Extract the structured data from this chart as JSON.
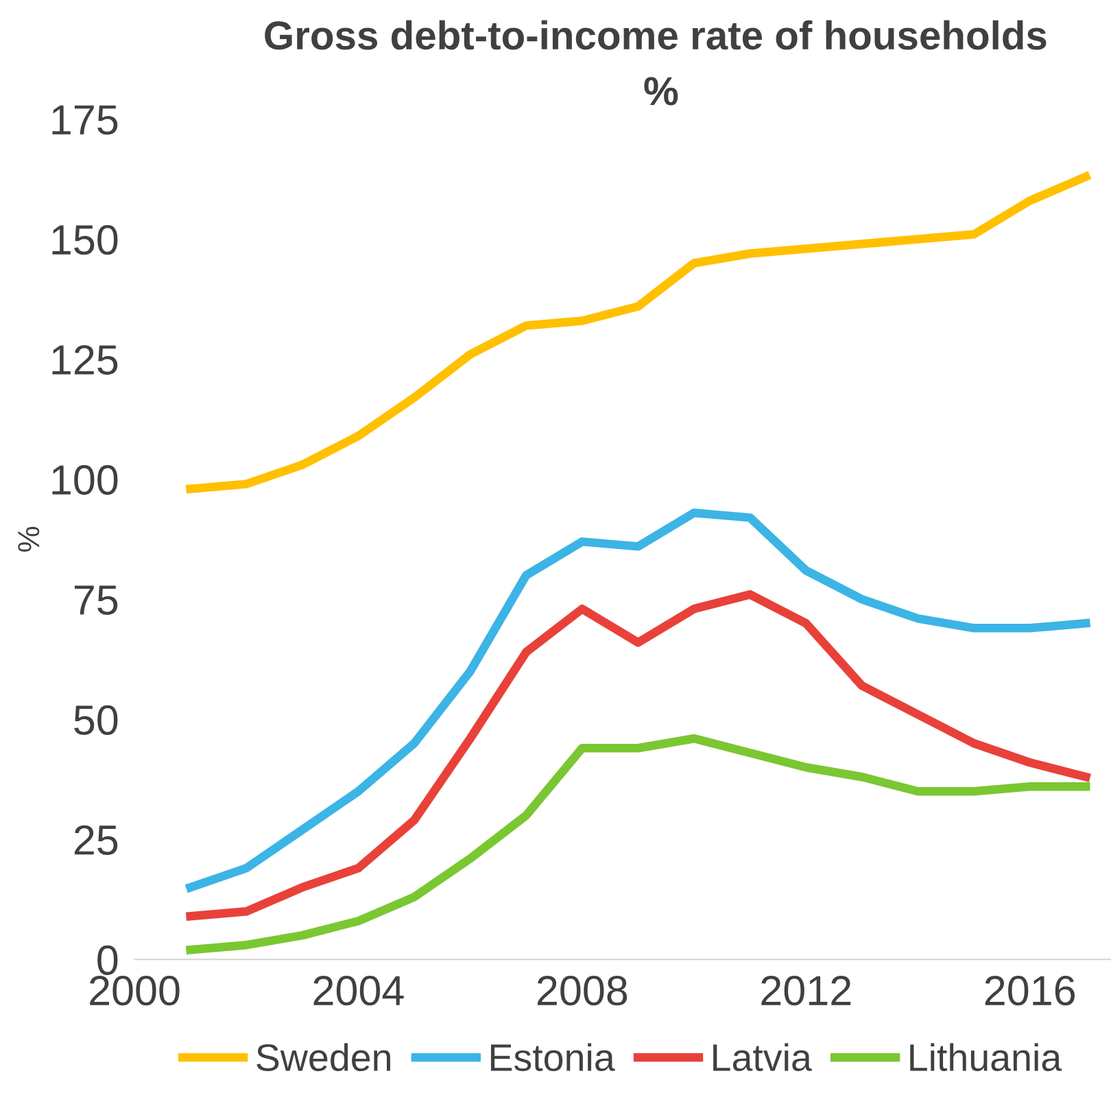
{
  "chart_data": {
    "type": "line",
    "title": "Gross debt-to-income rate of households",
    "subtitle": "%",
    "ylabel": "%",
    "x": [
      2001,
      2002,
      2003,
      2004,
      2005,
      2006,
      2007,
      2008,
      2009,
      2010,
      2011,
      2012,
      2013,
      2014,
      2015,
      2016,
      2017
    ],
    "series": [
      {
        "name": "Sweden",
        "color": "#ffc000",
        "values": [
          98,
          99,
          103,
          109,
          117,
          126,
          132,
          133,
          136,
          145,
          147,
          148,
          149,
          150,
          151,
          158,
          163
        ]
      },
      {
        "name": "Estonia",
        "color": "#3cb4e5",
        "values": [
          15,
          19,
          27,
          35,
          45,
          60,
          80,
          87,
          86,
          93,
          92,
          81,
          75,
          71,
          69,
          69,
          70
        ]
      },
      {
        "name": "Latvia",
        "color": "#e8413a",
        "values": [
          9,
          10,
          15,
          19,
          29,
          46,
          64,
          73,
          66,
          73,
          76,
          70,
          57,
          51,
          45,
          41,
          38
        ]
      },
      {
        "name": "Lithuania",
        "color": "#7ac732",
        "values": [
          2,
          3,
          5,
          8,
          13,
          21,
          30,
          44,
          44,
          46,
          43,
          40,
          38,
          35,
          35,
          36,
          36
        ]
      }
    ],
    "xlim": [
      2000,
      2017.45
    ],
    "xticks": [
      2000,
      2004,
      2008,
      2012,
      2016
    ],
    "ylim": [
      0,
      175
    ],
    "yticks": [
      0,
      25,
      50,
      75,
      100,
      125,
      150,
      175
    ],
    "grid": false,
    "legend": "bottom",
    "marker": "none",
    "line_style": "solid"
  }
}
